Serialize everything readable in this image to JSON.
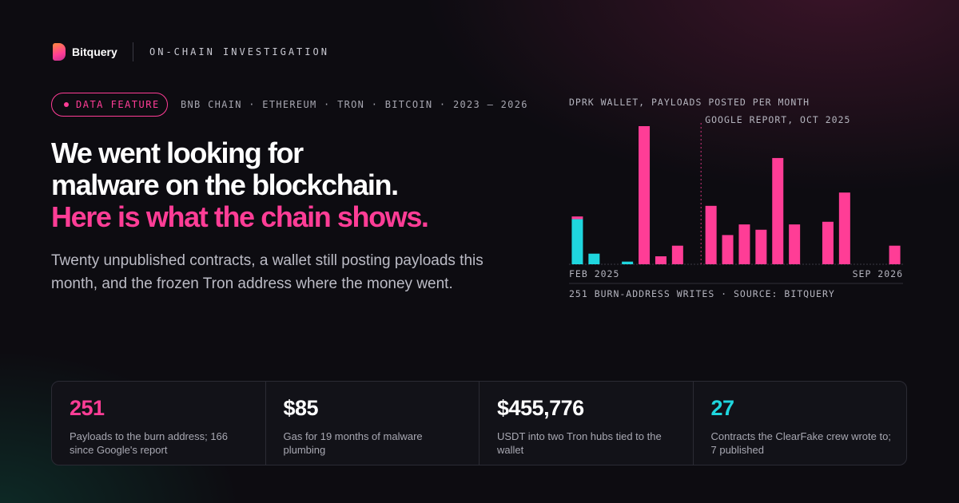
{
  "brand": "Bitquery",
  "section": "ON-CHAIN INVESTIGATION",
  "badge": "DATA FEATURE",
  "scope": "BNB CHAIN · ETHEREUM · TRON · BITCOIN · 2023 – 2026",
  "headline": [
    "We went looking for",
    "malware on the blockchain.",
    "Here is what the chain shows."
  ],
  "subtitle": "Twenty unpublished contracts, a wallet still posting payloads this month, and the frozen Tron address where the money went.",
  "chart_data": {
    "type": "stacked_bar",
    "title": "DPRK WALLET, PAYLOADS POSTED PER MONTH",
    "categories": [
      "FEB 2025",
      null,
      null,
      null,
      null,
      null,
      null,
      null,
      null,
      null,
      null,
      null,
      null,
      null,
      null,
      null,
      null,
      null,
      null,
      "SEP 2026"
    ],
    "series": [
      {
        "color": "#1fd6de",
        "values": [
          17,
          4,
          0,
          1,
          0,
          0,
          0,
          0,
          0,
          0,
          0,
          0,
          0,
          0,
          0,
          0,
          0,
          0,
          0,
          0
        ]
      },
      {
        "color": "#ff3d96",
        "values": [
          1,
          0,
          0,
          0,
          52,
          3,
          7,
          0,
          22,
          11,
          15,
          13,
          40,
          15,
          0,
          16,
          27,
          0,
          0,
          7
        ]
      }
    ],
    "ylim": [
      0,
      52
    ],
    "marker": {
      "label": "GOOGLE REPORT, OCT 2025",
      "category_index": 8
    },
    "footer": "251 BURN-ADDRESS WRITES · SOURCE: BITQUERY"
  },
  "stats": [
    {
      "value": "251",
      "label": "Payloads to the burn address; 166 since Google's report"
    },
    {
      "value": "$85",
      "label": "Gas for 19 months of malware plumbing"
    },
    {
      "value": "$455,776",
      "label": "USDT into two Tron hubs tied to the wallet"
    },
    {
      "value": "27",
      "label": "Contracts the ClearFake crew wrote to; 7 published"
    }
  ]
}
